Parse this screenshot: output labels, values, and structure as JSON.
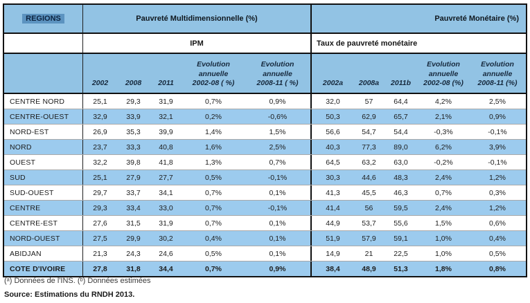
{
  "table": {
    "header": {
      "regions_label": "REGIONS",
      "multidim_label": "Pauvreté Multidimensionnelle (%)",
      "monetary_label": "Pauvreté Monétaire (%)",
      "ipm_label": "IPM",
      "taux_label": "Taux de pauvreté monétaire"
    },
    "columns": {
      "ipm": [
        "2002",
        "2008",
        "2011",
        "Evolution\nannuelle\n2002-08 ( %)",
        "Evolution\nannuelle\n2008-11 ( %)"
      ],
      "monetary": [
        "2002a",
        "2008a",
        "2011b",
        "Evolution\nannuelle\n2002-08 (%)",
        "Evolution\nannuelle\n2008-11 (%)"
      ]
    },
    "rows": [
      {
        "region": "CENTRE NORD",
        "ipm": [
          "25,1",
          "29,3",
          "31,9",
          "0,7%",
          "0,9%"
        ],
        "monetary": [
          "32,0",
          "57",
          "64,4",
          "4,2%",
          "2,5%"
        ],
        "bold": false
      },
      {
        "region": "CENTRE-OUEST",
        "ipm": [
          "32,9",
          "33,9",
          "32,1",
          "0,2%",
          "-0,6%"
        ],
        "monetary": [
          "50,3",
          "62,9",
          "65,7",
          "2,1%",
          "0,9%"
        ],
        "bold": false
      },
      {
        "region": "NORD-EST",
        "ipm": [
          "26,9",
          "35,3",
          "39,9",
          "1,4%",
          "1,5%"
        ],
        "monetary": [
          "56,6",
          "54,7",
          "54,4",
          "-0,3%",
          "-0,1%"
        ],
        "bold": false
      },
      {
        "region": "NORD",
        "ipm": [
          "23,7",
          "33,3",
          "40,8",
          "1,6%",
          "2,5%"
        ],
        "monetary": [
          "40,3",
          "77,3",
          "89,0",
          "6,2%",
          "3,9%"
        ],
        "bold": false
      },
      {
        "region": "OUEST",
        "ipm": [
          "32,2",
          "39,8",
          "41,8",
          "1,3%",
          "0,7%"
        ],
        "monetary": [
          "64,5",
          "63,2",
          "63,0",
          "-0,2%",
          "-0,1%"
        ],
        "bold": false
      },
      {
        "region": "SUD",
        "ipm": [
          "25,1",
          "27,9",
          "27,7",
          "0,5%",
          "-0,1%"
        ],
        "monetary": [
          "30,3",
          "44,6",
          "48,3",
          "2,4%",
          "1,2%"
        ],
        "bold": false
      },
      {
        "region": "SUD-OUEST",
        "ipm": [
          "29,7",
          "33,7",
          "34,1",
          "0,7%",
          "0,1%"
        ],
        "monetary": [
          "41,3",
          "45,5",
          "46,3",
          "0,7%",
          "0,3%"
        ],
        "bold": false
      },
      {
        "region": "CENTRE",
        "ipm": [
          "29,3",
          "33,4",
          "33,0",
          "0,7%",
          "-0,1%"
        ],
        "monetary": [
          "41,4",
          "56",
          "59,5",
          "2,4%",
          "1,2%"
        ],
        "bold": false
      },
      {
        "region": "CENTRE-EST",
        "ipm": [
          "27,6",
          "31,5",
          "31,9",
          "0,7%",
          "0,1%"
        ],
        "monetary": [
          "44,9",
          "53,7",
          "55,6",
          "1,5%",
          "0,6%"
        ],
        "bold": false
      },
      {
        "region": "NORD-OUEST",
        "ipm": [
          "27,5",
          "29,9",
          "30,2",
          "0,4%",
          "0,1%"
        ],
        "monetary": [
          "51,9",
          "57,9",
          "59,1",
          "1,0%",
          "0,4%"
        ],
        "bold": false
      },
      {
        "region": "ABIDJAN",
        "ipm": [
          "21,3",
          "24,3",
          "24,6",
          "0,5%",
          "0,1%"
        ],
        "monetary": [
          "14,9",
          "21",
          "22,5",
          "1,0%",
          "0,5%"
        ],
        "bold": false
      },
      {
        "region": "COTE D'IVOIRE",
        "ipm": [
          "27,8",
          "31,8",
          "34,4",
          "0,7%",
          "0,9%"
        ],
        "monetary": [
          "38,4",
          "48,9",
          "51,3",
          "1,8%",
          "0,8%"
        ],
        "bold": true
      }
    ]
  },
  "footnotes": {
    "note": "(ᵃ) Données de l'INS. (ᵇ) Données estimées",
    "source": "Source: Estimations du RNDH 2013."
  },
  "colors": {
    "header_blue": "#92c3e4",
    "stripe_blue": "#9ccbee",
    "highlight_blue": "#5c93c0",
    "border_black": "#101010"
  }
}
